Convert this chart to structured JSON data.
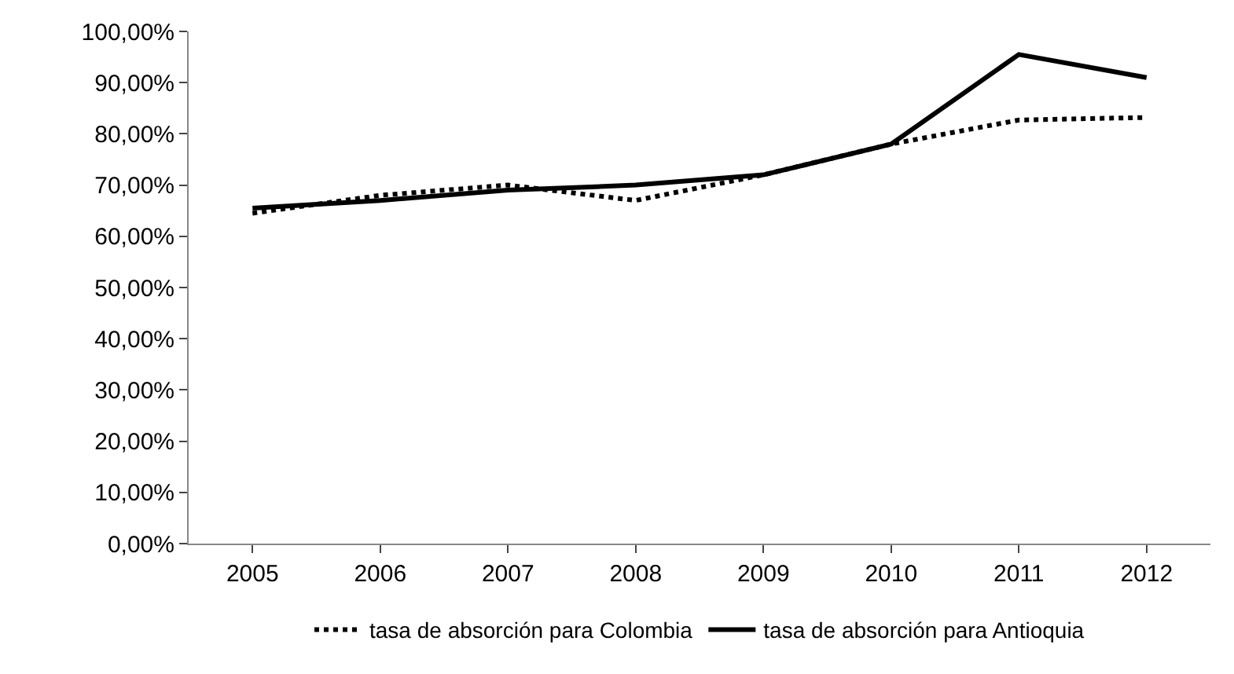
{
  "chart_data": {
    "type": "line",
    "categories": [
      "2005",
      "2006",
      "2007",
      "2008",
      "2009",
      "2010",
      "2011",
      "2012"
    ],
    "series": [
      {
        "name": "tasa de absorción para Colombia",
        "color": "#000000",
        "line_style": "dotted",
        "values": [
          64.5,
          68,
          70,
          67,
          72,
          78,
          82.7,
          83.2
        ]
      },
      {
        "name": "tasa de absorción para Antioquia",
        "color": "#000000",
        "line_style": "solid",
        "values": [
          65.5,
          67,
          69,
          70,
          72,
          78,
          95.5,
          91
        ]
      }
    ],
    "ylim": [
      0,
      100
    ],
    "yticks": [
      {
        "value": 0,
        "label": "0,00%"
      },
      {
        "value": 10,
        "label": "10,00%"
      },
      {
        "value": 20,
        "label": "20,00%"
      },
      {
        "value": 30,
        "label": "30,00%"
      },
      {
        "value": 40,
        "label": "40,00%"
      },
      {
        "value": 50,
        "label": "50,00%"
      },
      {
        "value": 60,
        "label": "60,00%"
      },
      {
        "value": 70,
        "label": "70,00%"
      },
      {
        "value": 80,
        "label": "80,00%"
      },
      {
        "value": 90,
        "label": "90,00%"
      },
      {
        "value": 100,
        "label": "100,00%"
      }
    ],
    "legend": "bottom",
    "marker": "none"
  }
}
